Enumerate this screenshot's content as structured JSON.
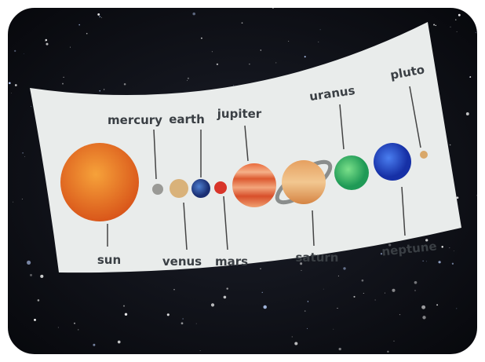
{
  "labels": [
    "sun",
    "mercury",
    "venus",
    "earth",
    "mars",
    "jupiter",
    "saturn",
    "uranus",
    "neptune",
    "pluto"
  ]
}
